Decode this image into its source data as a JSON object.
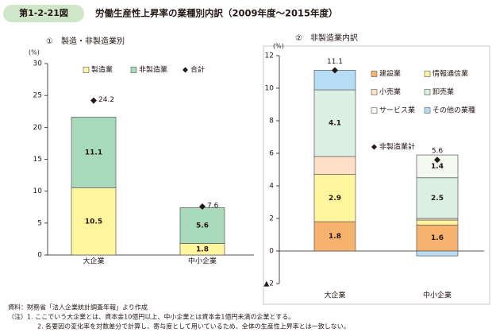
{
  "header": {
    "badge": "第1-2-21図",
    "title": "労働生産性上昇率の業種別内訳（2009年度～2015年度）"
  },
  "chart_data": [
    {
      "type": "bar",
      "stacked": true,
      "subtitle": "①　製造・非製造業別",
      "y_label": "(%)",
      "categories": [
        "大企業",
        "中小企業"
      ],
      "ylim": [
        0,
        30
      ],
      "yticks": [
        0,
        5,
        10,
        15,
        20,
        25,
        30
      ],
      "series": [
        {
          "name": "製造業",
          "color": "#fff59d",
          "values": [
            10.5,
            1.8
          ]
        },
        {
          "name": "非製造業",
          "color": "#a9d9bb",
          "values": [
            11.1,
            5.6
          ]
        }
      ],
      "totals": {
        "name": "合計",
        "color": "#231815",
        "values": [
          24.2,
          7.6
        ]
      }
    },
    {
      "type": "bar",
      "stacked": true,
      "subtitle": "②　非製造業内訳",
      "y_label": "(%)",
      "categories": [
        "大企業",
        "中小企業"
      ],
      "ylim": [
        -2,
        12
      ],
      "yticks": [
        {
          "value": -2,
          "label": "▲2"
        },
        0,
        2,
        4,
        6,
        8,
        10,
        12
      ],
      "series": [
        {
          "name": "建設業",
          "color": "#f7b36e",
          "values": [
            1.8,
            1.6
          ]
        },
        {
          "name": "情報通信業",
          "color": "#fff59d",
          "values": [
            2.9,
            0.3
          ]
        },
        {
          "name": "小売業",
          "color": "#fde0c5",
          "values": [
            1.1,
            0.1
          ]
        },
        {
          "name": "卸売業",
          "color": "#dcefe3",
          "values": [
            4.1,
            2.5
          ]
        },
        {
          "name": "サービス業",
          "color": "#f3f8f1",
          "values": [
            0,
            1.4
          ]
        },
        {
          "name": "その他の業種",
          "color": "#b7dcf5",
          "values": [
            1.2,
            -0.3
          ]
        }
      ],
      "totals": {
        "name": "非製造業計",
        "color": "#231815",
        "values": [
          11.1,
          5.6
        ]
      }
    }
  ],
  "notes": [
    "資料：財務省「法人企業統計調査年報」より作成",
    "（注）1. ここでいう大企業とは、資本金10億円以上、中小企業とは資本金1億円未満の企業とする。",
    "2. 各要因の変化率を対数差分で計算し、寄与度として用いているため、全体の生産性上昇率とは一致しない。"
  ]
}
